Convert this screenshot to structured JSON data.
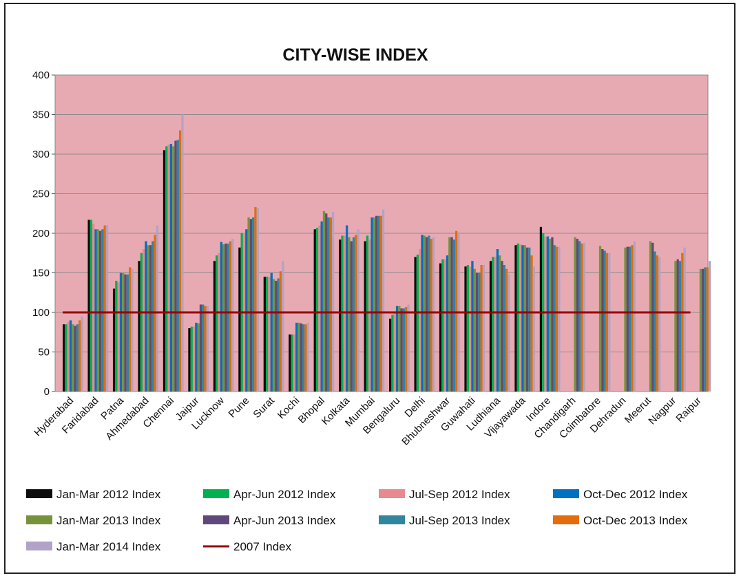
{
  "chart_data": {
    "type": "bar",
    "title": "CITY-WISE INDEX",
    "xlabel": "",
    "ylabel": "",
    "ylim": [
      0,
      400
    ],
    "yticks": [
      "0",
      "50",
      "100",
      "150",
      "200",
      "250",
      "300",
      "350",
      "400"
    ],
    "grid": true,
    "legend_position": "bottom",
    "plot_background": "#e8aab2",
    "categories": [
      "Hyderabad",
      "Faridabad",
      "Patna",
      "Ahmedabad",
      "Chennai",
      "Jaipur",
      "Lucknow",
      "Pune",
      "Surat",
      "Kochi",
      "Bhopal",
      "Kolkata",
      "Mumbai",
      "Bengaluru",
      "Delhi",
      "Bhubneshwar",
      "Guwahati",
      "Ludhiana",
      "Vijayawada",
      "Indore",
      "Chandigarh",
      "Coimbatore",
      "Dehradun",
      "Meerut",
      "Nagpur",
      "Raipur"
    ],
    "series": [
      {
        "name": "Jan-Mar 2012 Index",
        "color": "#0d0d0d",
        "values": [
          85,
          217,
          130,
          165,
          305,
          80,
          165,
          182,
          145,
          72,
          205,
          192,
          190,
          92,
          170,
          162,
          158,
          165,
          185,
          208,
          null,
          null,
          null,
          null,
          null,
          null
        ]
      },
      {
        "name": "Apr-Jun 2012 Index",
        "color": "#00b050",
        "values": [
          85,
          217,
          140,
          175,
          310,
          82,
          172,
          200,
          145,
          72,
          207,
          197,
          197,
          97,
          173,
          167,
          160,
          170,
          187,
          200,
          null,
          null,
          null,
          null,
          null,
          null
        ]
      },
      {
        "name": "Jul-Sep 2012 Index",
        "color": "#e8888f",
        "values": [
          88,
          212,
          138,
          180,
          312,
          82,
          175,
          200,
          145,
          72,
          210,
          197,
          192,
          100,
          180,
          167,
          158,
          170,
          186,
          196,
          null,
          null,
          null,
          null,
          null,
          null
        ]
      },
      {
        "name": "Oct-Dec 2012 Index",
        "color": "#0070c0",
        "values": [
          90,
          205,
          150,
          190,
          313,
          87,
          189,
          205,
          150,
          87,
          215,
          210,
          220,
          108,
          198,
          172,
          165,
          180,
          185,
          196,
          null,
          null,
          null,
          null,
          null,
          null
        ]
      },
      {
        "name": "Jan-Mar 2013 Index",
        "color": "#76933c",
        "values": [
          85,
          205,
          150,
          185,
          310,
          86,
          186,
          220,
          142,
          87,
          228,
          195,
          220,
          108,
          197,
          195,
          155,
          172,
          185,
          193,
          195,
          184,
          182,
          190,
          165,
          155
        ]
      },
      {
        "name": "Apr-Jun 2013 Index",
        "color": "#60497a",
        "values": [
          83,
          203,
          148,
          185,
          317,
          110,
          187,
          218,
          140,
          86,
          225,
          190,
          222,
          105,
          195,
          195,
          150,
          165,
          182,
          195,
          193,
          180,
          183,
          188,
          167,
          155
        ]
      },
      {
        "name": "Jul-Sep 2013 Index",
        "color": "#31859c",
        "values": [
          85,
          205,
          148,
          190,
          318,
          110,
          187,
          220,
          143,
          85,
          220,
          195,
          222,
          105,
          197,
          192,
          150,
          160,
          182,
          185,
          190,
          178,
          183,
          177,
          165,
          157
        ]
      },
      {
        "name": "Oct-Dec 2013 Index",
        "color": "#e46c0a",
        "values": [
          90,
          210,
          157,
          198,
          330,
          108,
          190,
          233,
          152,
          85,
          220,
          198,
          222,
          107,
          193,
          203,
          160,
          155,
          172,
          183,
          187,
          175,
          185,
          172,
          175,
          157
        ]
      },
      {
        "name": "Jan-Mar 2014 Index",
        "color": "#b3a2c7",
        "values": [
          95,
          210,
          155,
          210,
          350,
          108,
          193,
          232,
          165,
          87,
          227,
          205,
          230,
          110,
          195,
          200,
          160,
          148,
          158,
          183,
          188,
          175,
          190,
          170,
          182,
          165
        ]
      }
    ],
    "reference_line": {
      "name": "2007 Index",
      "value": 100,
      "color": "#990000"
    }
  }
}
